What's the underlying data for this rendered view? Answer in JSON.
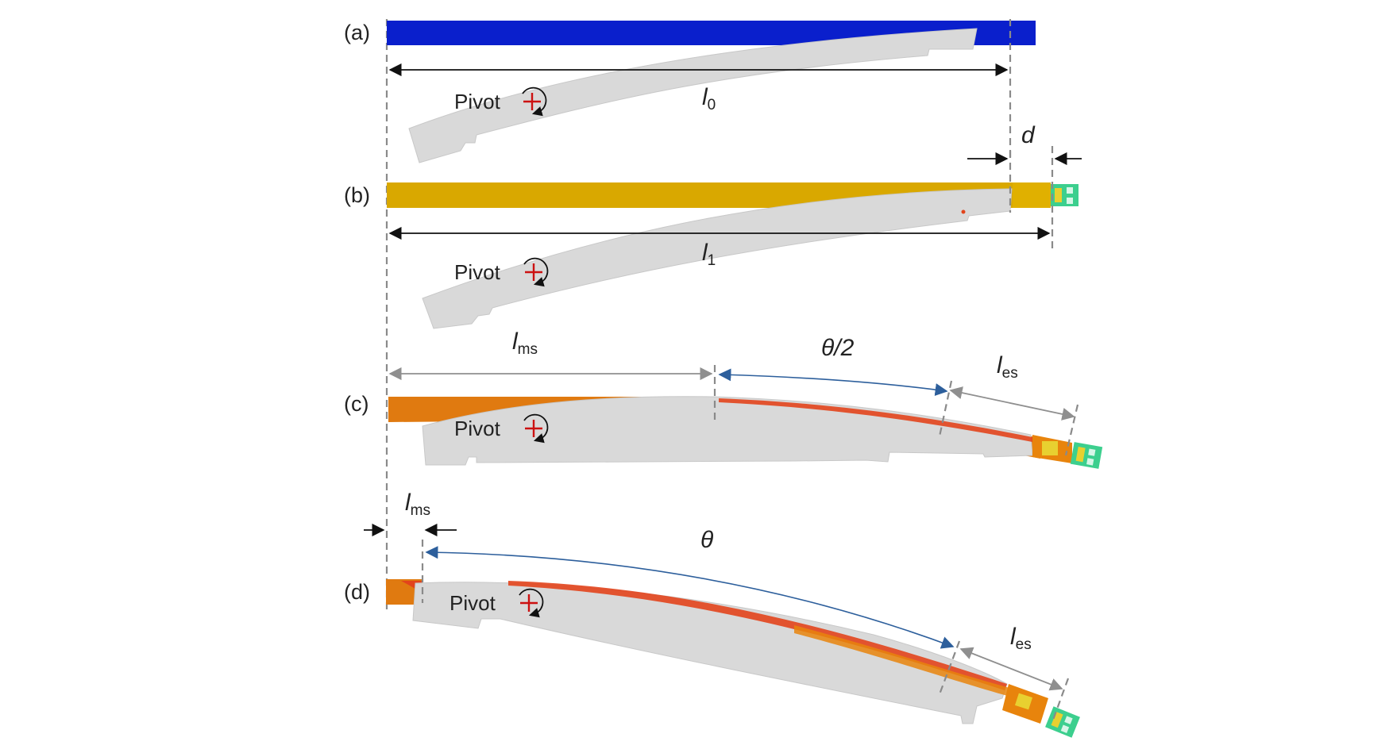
{
  "panels": {
    "a": {
      "label": "(a)",
      "pivot": "Pivot",
      "length": "l",
      "length_sub": "0"
    },
    "b": {
      "label": "(b)",
      "pivot": "Pivot",
      "length": "l",
      "length_sub": "1",
      "gap": "d"
    },
    "c": {
      "label": "(c)",
      "pivot": "Pivot",
      "ms": "l",
      "ms_sub": "ms",
      "angle": "θ/2",
      "es": "l",
      "es_sub": "es"
    },
    "d": {
      "label": "(d)",
      "pivot": "Pivot",
      "ms": "l",
      "ms_sub": "ms",
      "angle": "θ",
      "es": "l",
      "es_sub": "es"
    }
  },
  "colors": {
    "panel_a_strip": "#0a1fcc",
    "panel_b_strip": "#d9a800",
    "panel_c_strip": "#e07a10",
    "panel_d_strip": "#e07a10",
    "stress_red": "#e2441c",
    "contact_green": "#3ccf8e",
    "contact_yellow": "#e8d030",
    "body_gray": "#d9d9d9",
    "pivot_cross": "#cc1111",
    "arc_blue": "#2d5f9c"
  },
  "icons": [
    "rotation-arrow-icon",
    "pivot-cross-icon"
  ]
}
